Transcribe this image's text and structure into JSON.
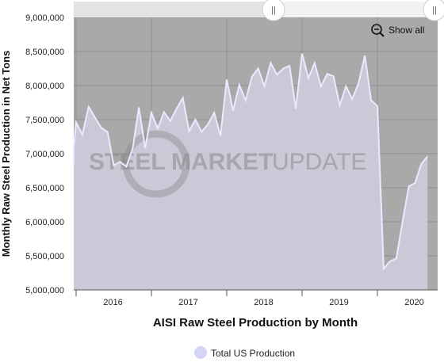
{
  "chart_data": {
    "type": "area",
    "title": "",
    "xlabel": "AISI Raw Steel Production by Month",
    "ylabel": "Monthly Raw Steel Production in Net Tons",
    "ylim": [
      5000000,
      9000000
    ],
    "y_ticks": [
      5000000,
      5500000,
      6000000,
      6500000,
      7000000,
      7500000,
      8000000,
      8500000,
      9000000
    ],
    "y_tick_labels": [
      "5,000,000",
      "5,500,000",
      "6,000,000",
      "6,500,000",
      "7,000,000",
      "7,500,000",
      "8,000,000",
      "8,500,000",
      "9,000,000"
    ],
    "x_tick_labels": [
      "2016",
      "2017",
      "2018",
      "2019",
      "2020"
    ],
    "x_start": "2015-10",
    "grid": true,
    "legend_position": "bottom-center",
    "series": [
      {
        "name": "Total US Production",
        "color": "#d7d5f7",
        "values": [
          6850000,
          7120000,
          7080000,
          7460000,
          7280000,
          7690000,
          7530000,
          7380000,
          7320000,
          6830000,
          6880000,
          6810000,
          7070000,
          7680000,
          7080000,
          7600000,
          7370000,
          7610000,
          7480000,
          7660000,
          7820000,
          7330000,
          7500000,
          7320000,
          7430000,
          7600000,
          7260000,
          8090000,
          7630000,
          8010000,
          7780000,
          8130000,
          8250000,
          7990000,
          8330000,
          8160000,
          8250000,
          8290000,
          7660000,
          8470000,
          8110000,
          8330000,
          7990000,
          8170000,
          8140000,
          7710000,
          7990000,
          7800000,
          8040000,
          8440000,
          7780000,
          7700000,
          5310000,
          5420000,
          5460000,
          6000000,
          6520000,
          6570000,
          6850000,
          6960000
        ]
      }
    ]
  },
  "controls": {
    "show_all_label": "Show all",
    "show_all_icon": "zoom-out-icon",
    "scrollbar_grip": "||"
  },
  "watermark": {
    "part1": "STEEL",
    "part2": "MARKET",
    "part3": "UPDATE"
  },
  "colors": {
    "plot_background": "#aaaaaa",
    "line": "#e9e7ff",
    "area_fill": "#cbcad9"
  }
}
